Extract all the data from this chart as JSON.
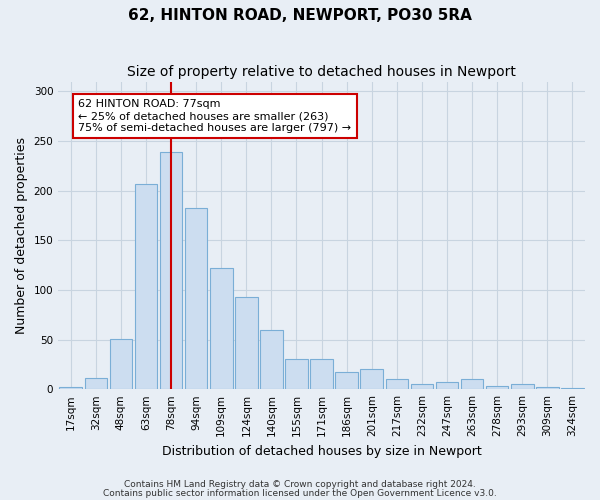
{
  "title1": "62, HINTON ROAD, NEWPORT, PO30 5RA",
  "title2": "Size of property relative to detached houses in Newport",
  "xlabel": "Distribution of detached houses by size in Newport",
  "ylabel": "Number of detached properties",
  "categories": [
    "17sqm",
    "32sqm",
    "48sqm",
    "63sqm",
    "78sqm",
    "94sqm",
    "109sqm",
    "124sqm",
    "140sqm",
    "155sqm",
    "171sqm",
    "186sqm",
    "201sqm",
    "217sqm",
    "232sqm",
    "247sqm",
    "263sqm",
    "278sqm",
    "293sqm",
    "309sqm",
    "324sqm"
  ],
  "values": [
    2,
    11,
    51,
    207,
    239,
    183,
    122,
    93,
    60,
    30,
    30,
    17,
    20,
    10,
    5,
    7,
    10,
    3,
    5,
    2,
    1
  ],
  "bar_color": "#ccddf0",
  "bar_edge_color": "#7aaed6",
  "vline_x_index": 4,
  "vline_color": "#cc0000",
  "annotation_text": "62 HINTON ROAD: 77sqm\n← 25% of detached houses are smaller (263)\n75% of semi-detached houses are larger (797) →",
  "annotation_box_color": "#ffffff",
  "annotation_box_edge": "#cc0000",
  "grid_color": "#c8d4e0",
  "background_color": "#e8eef5",
  "footer1": "Contains HM Land Registry data © Crown copyright and database right 2024.",
  "footer2": "Contains public sector information licensed under the Open Government Licence v3.0.",
  "ylim": [
    0,
    310
  ],
  "title1_fontsize": 11,
  "title2_fontsize": 10,
  "tick_fontsize": 7.5,
  "label_fontsize": 9,
  "footer_fontsize": 6.5
}
